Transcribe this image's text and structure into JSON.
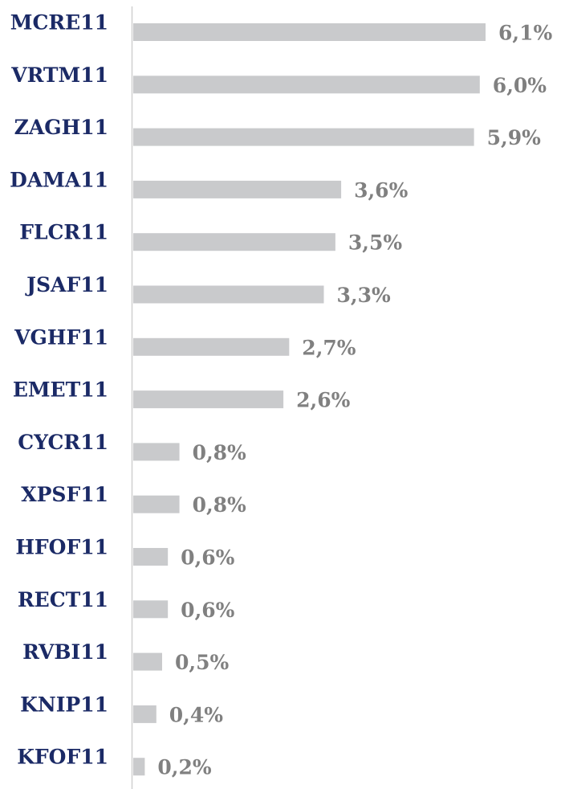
{
  "chart_data": {
    "type": "bar",
    "orientation": "horizontal",
    "color": "#c9cacc",
    "categories": [
      "MCRE11",
      "VRTM11",
      "ZAGH11",
      "DAMA11",
      "FLCR11",
      "JSAF11",
      "VGHF11",
      "EMET11",
      "CYCR11",
      "XPSF11",
      "HFOF11",
      "RECT11",
      "RVBI11",
      "KNIP11",
      "KFOF11"
    ],
    "values": [
      6.1,
      6.0,
      5.9,
      3.6,
      3.5,
      3.3,
      2.7,
      2.6,
      0.8,
      0.8,
      0.6,
      0.6,
      0.5,
      0.4,
      0.2
    ],
    "value_labels": [
      "6,1%",
      "6,0%",
      "5,9%",
      "3,6%",
      "3,5%",
      "3,3%",
      "2,7%",
      "2,6%",
      "0,8%",
      "0,8%",
      "0,6%",
      "0,6%",
      "0,5%",
      "0,4%",
      "0,2%"
    ]
  }
}
